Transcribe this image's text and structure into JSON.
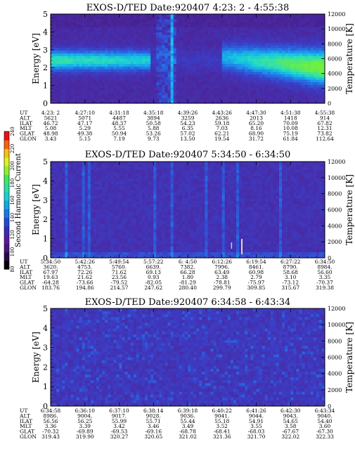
{
  "colorbar": {
    "label": "Second Harmonic Current",
    "ticks": [
      "80",
      "100",
      "120",
      "140",
      "160",
      "180",
      "200",
      "220",
      "240"
    ],
    "colors": [
      "#000000",
      "#2a0a4a",
      "#4a1480",
      "#5a1aa0",
      "#3a2ab8",
      "#1f4ad8",
      "#1878e8",
      "#10a8e8",
      "#18d0d0",
      "#28e0a0",
      "#40e860",
      "#90f030",
      "#e0f020",
      "#f8c010",
      "#f86010",
      "#e81010"
    ]
  },
  "chart_data": [
    {
      "type": "heatmap",
      "title": "EXOS-D/TED   Date:920407  4:23: 2 - 4:55:38",
      "ylabel": "Energy [eV]",
      "ylabel_right": "Temperature [K]",
      "ylim": [
        0,
        5
      ],
      "y_ticks": [
        "0",
        "1",
        "2",
        "3",
        "4",
        "5"
      ],
      "ylim_right": [
        0,
        12000
      ],
      "y_ticks_right": [
        "0",
        "2000",
        "4000",
        "6000",
        "8000",
        "10000",
        "12000"
      ],
      "orbit_labels": [
        "UT",
        "ALT",
        "ILAT",
        "MLT",
        "GLAT",
        "GLON"
      ],
      "orbit_table": [
        [
          "4:23: 2",
          "4:27:10",
          "4:31:18",
          "4:35:18",
          "4:39:26",
          "4:43:26",
          "4:47:30",
          "4:51:38",
          "4:55:38"
        ],
        [
          "5621",
          "5071",
          "4487",
          "3894",
          "3259",
          "2636",
          "2013",
          "1418",
          "914"
        ],
        [
          "46.72",
          "47.17",
          "48.37",
          "50.58",
          "54.23",
          "59.18",
          "65.20",
          "70.09",
          "67.82"
        ],
        [
          "5.08",
          "5.29",
          "5.55",
          "5.88",
          "6.35",
          "7.03",
          "8.16",
          "10.08",
          "12.31"
        ],
        [
          "48.98",
          "49.38",
          "50.94",
          "53.26",
          "57.02",
          "62.21",
          "68.90",
          "75.19",
          "73.82"
        ],
        [
          "3.43",
          "5.15",
          "7.19",
          "9.73",
          "13.50",
          "19.54",
          "31.72",
          "61.84",
          "112.64"
        ]
      ]
    },
    {
      "type": "heatmap",
      "title": "EXOS-D/TED   Date:920407  5:34:50 - 6:34:50",
      "ylabel": "Energy [eV]",
      "ylabel_right": "Temperature [K]",
      "ylim": [
        0,
        5
      ],
      "y_ticks": [
        "0",
        "1",
        "2",
        "3",
        "4",
        "5"
      ],
      "ylim_right": [
        0,
        12000
      ],
      "y_ticks_right": [
        "0",
        "2000",
        "4000",
        "6000",
        "8000",
        "10000",
        "12000"
      ],
      "orbit_labels": [
        "UT",
        "ALT",
        "ILAT",
        "MLT",
        "GLAT",
        "GLON"
      ],
      "orbit_table": [
        [
          "5:34:50",
          "5:42:26",
          "5:49:54",
          "5:57:22",
          "6: 4:50",
          "6:12:26",
          "6:19:54",
          "6:27:22",
          "6:34:50"
        ],
        [
          "3620.",
          "4753.",
          "5760.",
          "6639.",
          "7382.",
          "7996.",
          "8461.",
          "8790.",
          "8984."
        ],
        [
          "67.97",
          "72.26",
          "71.62",
          "69.13",
          "66.28",
          "63.49",
          "60.98",
          "58.68",
          "56.60"
        ],
        [
          "19.63",
          "21.62",
          "23.56",
          "0.93",
          "1.80",
          "2.38",
          "2.79",
          "3.10",
          "3.35"
        ],
        [
          "-64.28",
          "-73.66",
          "-79.52",
          "-82.05",
          "-81.29",
          "-78.81",
          "-75.97",
          "-73.12",
          "-70.37"
        ],
        [
          "183.76",
          "194.86",
          "214.57",
          "247.62",
          "280.40",
          "299.79",
          "309.85",
          "315.67",
          "319.38"
        ]
      ]
    },
    {
      "type": "heatmap",
      "title": "EXOS-D/TED   Date:920407  6:34:58 - 6:43:34",
      "ylabel": "Energy [eV]",
      "ylabel_right": "Temperature [K]",
      "ylim": [
        0,
        5
      ],
      "y_ticks": [
        "0",
        "1",
        "2",
        "3",
        "4",
        "5"
      ],
      "ylim_right": [
        0,
        12000
      ],
      "y_ticks_right": [
        "0",
        "2000",
        "4000",
        "6000",
        "8000",
        "10000",
        "12000"
      ],
      "orbit_labels": [
        "UT",
        "ALT",
        "ILAT",
        "MLT",
        "GLAT",
        "GLON"
      ],
      "orbit_table": [
        [
          "6:34:58",
          "6:36:10",
          "6:37:10",
          "6:38:14",
          "6:39:18",
          "6:40:22",
          "6:41:26",
          "6:42:30",
          "6:43:34"
        ],
        [
          "8986.",
          "9004.",
          "9017.",
          "9028.",
          "9036.",
          "9041.",
          "9044.",
          "9043.",
          "9040."
        ],
        [
          "56.56",
          "56.25",
          "55.99",
          "55.71",
          "55.44",
          "55.18",
          "54.91",
          "54.65",
          "54.40"
        ],
        [
          "3.36",
          "3.39",
          "3.42",
          "3.46",
          "3.49",
          "3.52",
          "3.55",
          "3.58",
          "3.60"
        ],
        [
          "-70.32",
          "-69.89",
          "-69.53",
          "-69.16",
          "-68.78",
          "-68.41",
          "-68.03",
          "-67.67",
          "-67.30"
        ],
        [
          "319.43",
          "319.90",
          "320.27",
          "320.65",
          "321.02",
          "321.36",
          "321.70",
          "322.02",
          "322.33"
        ]
      ]
    }
  ]
}
